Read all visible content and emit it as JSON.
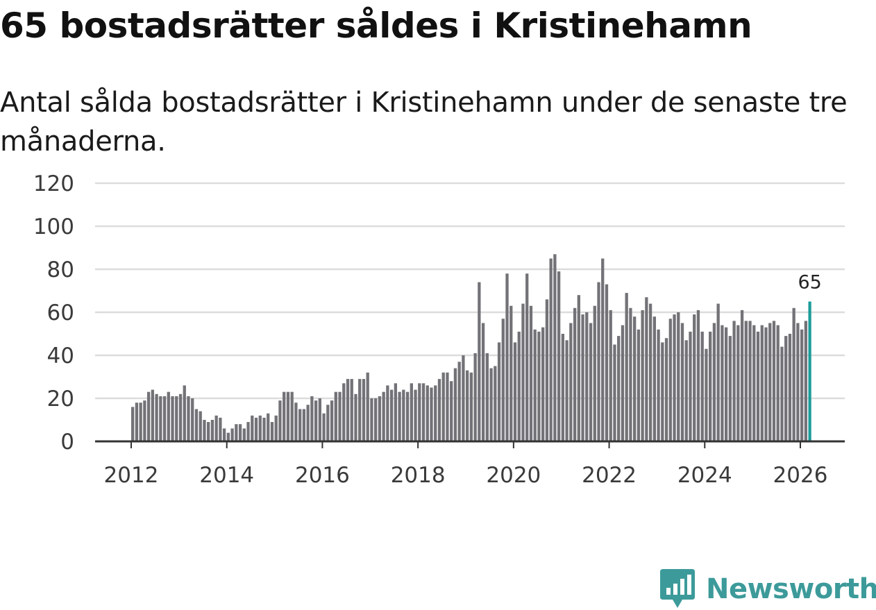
{
  "title": "65 bostadsrätter såldes i Kristinehamn",
  "subtitle": "Antal sålda bostadsrätter i Kristinehamn under de senaste tre månaderna.",
  "logo": {
    "icon": "newsworthy-logo-icon",
    "text": "Newsworthy"
  },
  "colors": {
    "bar": "#737277",
    "highlight": "#1d9d9b",
    "grid": "#dcdcdc",
    "axis": "#333333",
    "logo": "#3d9a9a"
  },
  "chart_data": {
    "type": "bar",
    "title": "65 bostadsrätter såldes i Kristinehamn",
    "xlabel": "",
    "ylabel": "",
    "ylim": [
      0,
      120
    ],
    "y_ticks": [
      0,
      20,
      40,
      60,
      80,
      100,
      120
    ],
    "x_tick_labels": [
      "2012",
      "2014",
      "2016",
      "2018",
      "2020",
      "2022",
      "2024",
      "2026"
    ],
    "x_start": "2012-01",
    "x_end": "2026-03",
    "grid": true,
    "highlight_last": true,
    "last_value_label": "65",
    "values": [
      16,
      18,
      18,
      19,
      23,
      24,
      22,
      21,
      21,
      23,
      21,
      21,
      22,
      26,
      21,
      20,
      15,
      14,
      10,
      9,
      10,
      12,
      11,
      6,
      4,
      6,
      8,
      8,
      6,
      9,
      12,
      11,
      12,
      11,
      13,
      9,
      12,
      19,
      23,
      23,
      23,
      18,
      15,
      15,
      17,
      21,
      19,
      20,
      13,
      17,
      19,
      23,
      23,
      27,
      29,
      29,
      22,
      29,
      29,
      32,
      20,
      20,
      21,
      23,
      26,
      24,
      27,
      23,
      24,
      23,
      27,
      24,
      27,
      27,
      26,
      25,
      26,
      29,
      32,
      32,
      28,
      34,
      37,
      40,
      33,
      32,
      41,
      74,
      55,
      41,
      34,
      35,
      46,
      57,
      78,
      63,
      46,
      51,
      64,
      78,
      63,
      52,
      51,
      53,
      66,
      85,
      87,
      79,
      50,
      47,
      55,
      62,
      68,
      59,
      60,
      55,
      63,
      74,
      85,
      73,
      61,
      45,
      49,
      54,
      69,
      62,
      58,
      52,
      61,
      67,
      64,
      58,
      52,
      46,
      48,
      57,
      59,
      60,
      55,
      47,
      51,
      59,
      61,
      51,
      43,
      51,
      55,
      64,
      54,
      53,
      49,
      56,
      54,
      61,
      56,
      56,
      54,
      51,
      54,
      53,
      55,
      56,
      54,
      44,
      49,
      50,
      62,
      55,
      52,
      56,
      65
    ]
  }
}
